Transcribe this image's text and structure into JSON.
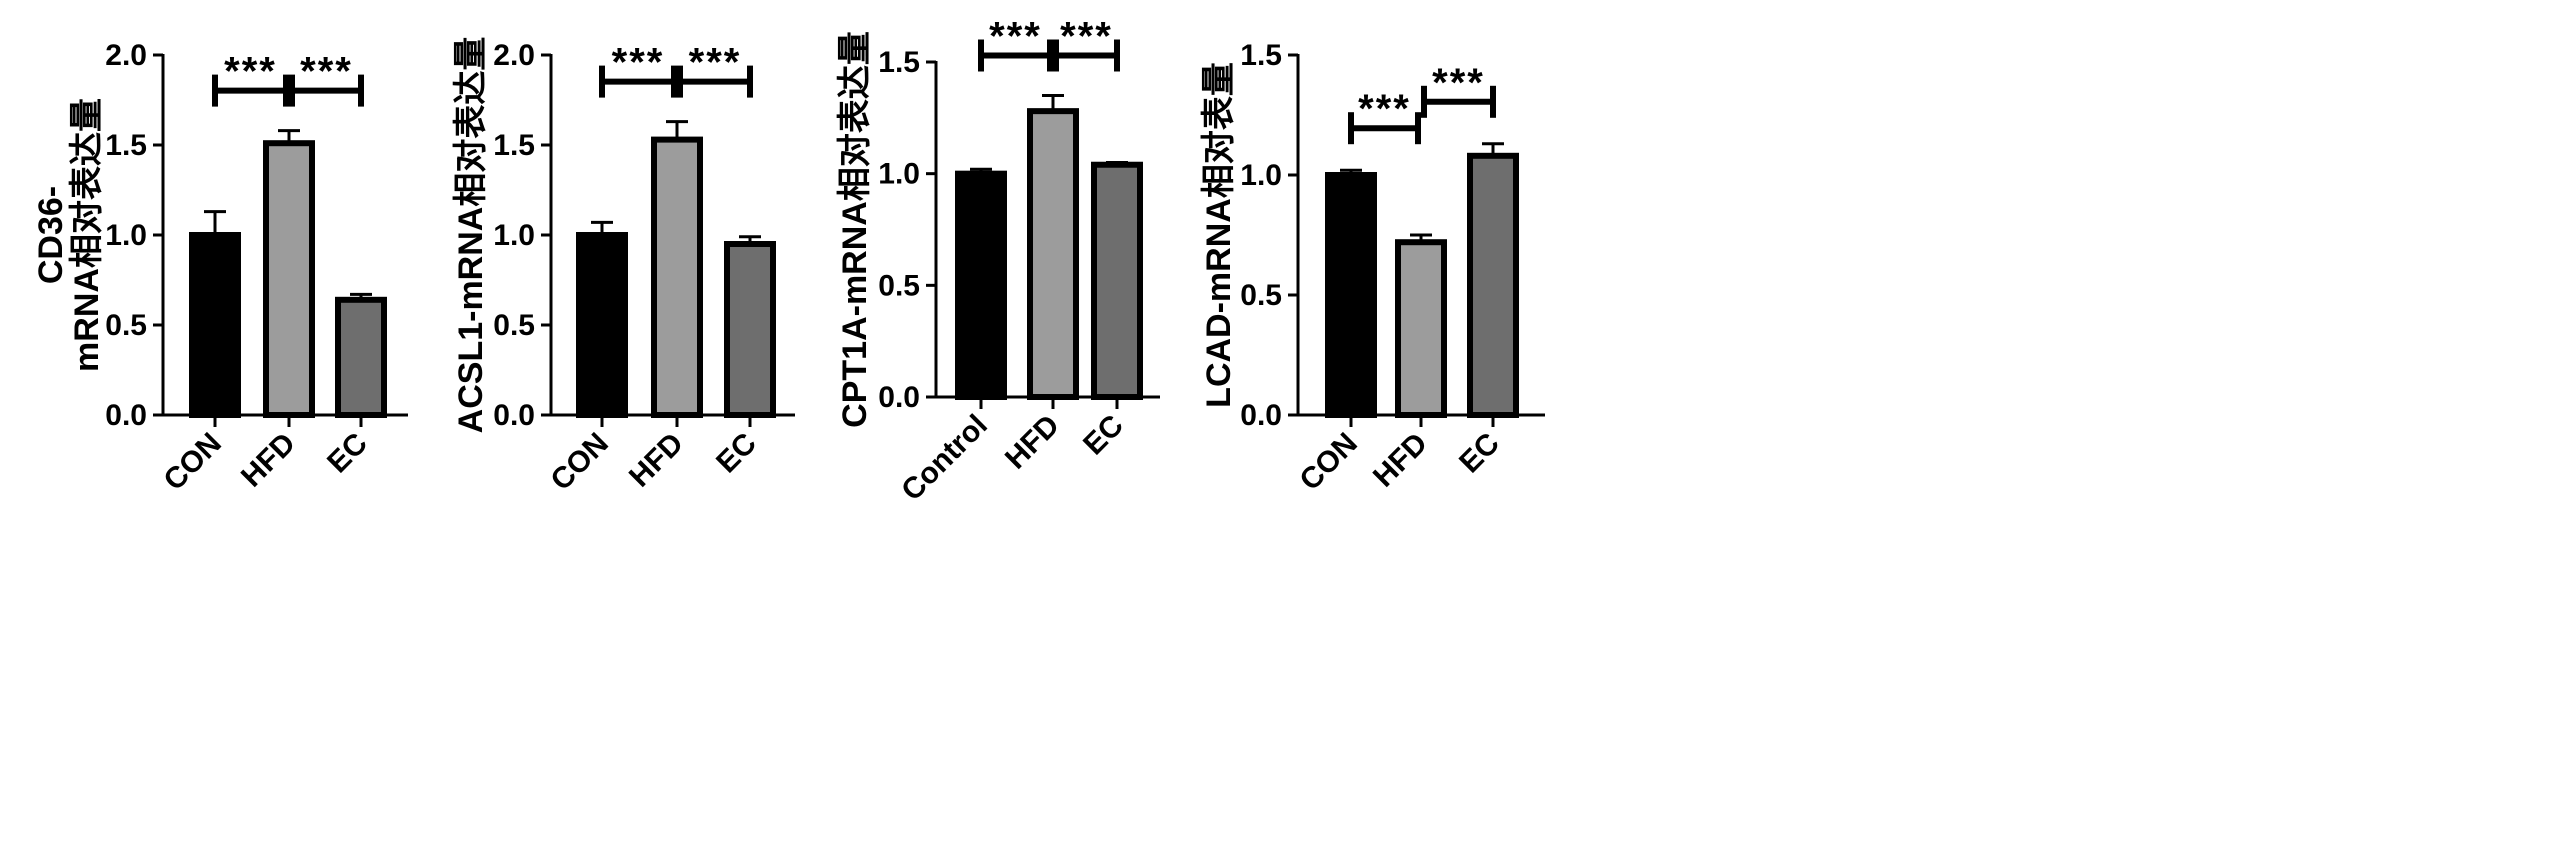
{
  "chart_data": [
    {
      "type": "bar",
      "ylabel_lines": [
        "CD36-",
        "mRNA相对表达量"
      ],
      "categories": [
        "CON",
        "HFD",
        "EC"
      ],
      "values": [
        1.0,
        1.51,
        0.64
      ],
      "errors": [
        0.13,
        0.07,
        0.03
      ],
      "ylim": [
        0,
        2.0
      ],
      "yticks": [
        "0.0",
        "0.5",
        "1.0",
        "1.5",
        "2.0"
      ],
      "significance": [
        {
          "from": 0,
          "to": 1,
          "label": "***"
        },
        {
          "from": 1,
          "to": 2,
          "label": "***"
        }
      ]
    },
    {
      "type": "bar",
      "ylabel_lines": [
        "ACSL1-mRNA相对表达量"
      ],
      "categories": [
        "CON",
        "HFD",
        "EC"
      ],
      "values": [
        1.0,
        1.53,
        0.95
      ],
      "errors": [
        0.07,
        0.1,
        0.04
      ],
      "ylim": [
        0,
        2.0
      ],
      "yticks": [
        "0.0",
        "0.5",
        "1.0",
        "1.5",
        "2.0"
      ],
      "significance": [
        {
          "from": 0,
          "to": 1,
          "label": "***"
        },
        {
          "from": 1,
          "to": 2,
          "label": "***"
        }
      ]
    },
    {
      "type": "bar",
      "ylabel_lines": [
        "CPT1A-mRNA相对表达量"
      ],
      "categories": [
        "Control",
        "HFD",
        "EC"
      ],
      "values": [
        1.0,
        1.28,
        1.04
      ],
      "errors": [
        0.02,
        0.07,
        0.01
      ],
      "ylim": [
        0,
        1.5
      ],
      "yticks": [
        "0.0",
        "0.5",
        "1.0",
        "1.5"
      ],
      "significance": [
        {
          "from": 0,
          "to": 1,
          "label": "***"
        },
        {
          "from": 1,
          "to": 2,
          "label": "***"
        }
      ]
    },
    {
      "type": "bar",
      "ylabel_lines": [
        "LCAD-mRNA相对表量"
      ],
      "categories": [
        "CON",
        "HFD",
        "EC"
      ],
      "values": [
        1.0,
        0.72,
        1.08
      ],
      "errors": [
        0.02,
        0.03,
        0.05
      ],
      "ylim": [
        0,
        1.5
      ],
      "yticks": [
        "0.0",
        "0.5",
        "1.0",
        "1.5"
      ],
      "significance": [
        {
          "from": 0,
          "to": 1,
          "label": "***"
        },
        {
          "from": 1,
          "to": 2,
          "label": "***"
        }
      ]
    }
  ],
  "colors": {
    "bar_fills": [
      "#000000",
      "#9c9c9c",
      "#6e6e6e"
    ],
    "stroke": "#000000"
  }
}
